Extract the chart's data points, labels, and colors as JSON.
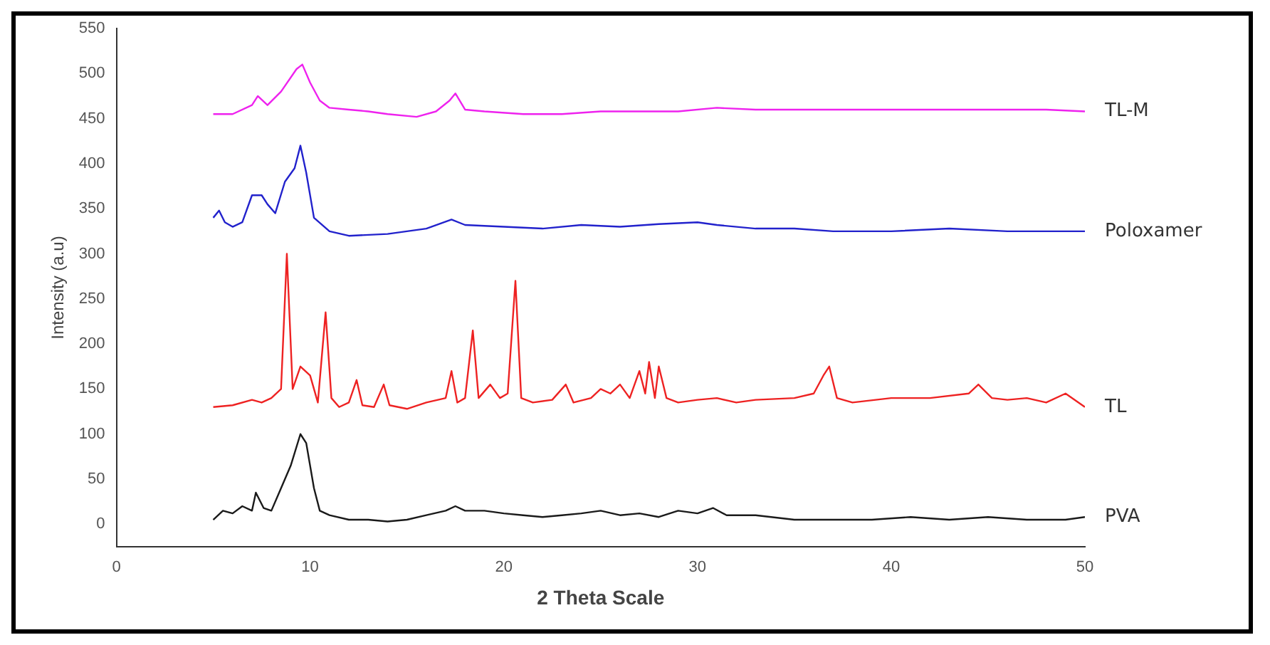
{
  "chart_data": {
    "type": "line",
    "xlabel": "2 Theta Scale",
    "ylabel": "Intensity (a.u)",
    "xlim": [
      0,
      50
    ],
    "xticks": [
      0,
      10,
      20,
      30,
      40,
      50
    ],
    "ylim": [
      -25,
      550
    ],
    "yticks": [
      0,
      50,
      100,
      150,
      200,
      250,
      300,
      350,
      400,
      450,
      500,
      550
    ],
    "grid": false,
    "series": [
      {
        "name": "PVA",
        "color": "#1a1a1a",
        "x": [
          5,
          5.5,
          6,
          6.5,
          7,
          7.2,
          7.6,
          8,
          8.5,
          9,
          9.5,
          9.8,
          10.2,
          10.5,
          11,
          12,
          13,
          14,
          15,
          16,
          17,
          17.5,
          18,
          19,
          20,
          21,
          22,
          23,
          24,
          25,
          26,
          27,
          28,
          29,
          30,
          30.8,
          31.5,
          33,
          35,
          37,
          39,
          41,
          43,
          45,
          47,
          49,
          50
        ],
        "values": [
          5,
          15,
          12,
          20,
          15,
          35,
          18,
          15,
          40,
          65,
          100,
          90,
          40,
          15,
          10,
          5,
          5,
          3,
          5,
          10,
          15,
          20,
          15,
          15,
          12,
          10,
          8,
          10,
          12,
          15,
          10,
          12,
          8,
          15,
          12,
          18,
          10,
          10,
          5,
          5,
          5,
          8,
          5,
          8,
          5,
          5,
          8
        ]
      },
      {
        "name": "TL",
        "color": "#ee2222",
        "x": [
          5,
          6,
          7,
          7.5,
          8,
          8.5,
          8.8,
          9.1,
          9.5,
          10,
          10.4,
          10.8,
          11.1,
          11.5,
          12,
          12.4,
          12.7,
          13.3,
          13.8,
          14.1,
          15,
          16,
          17,
          17.3,
          17.6,
          18,
          18.4,
          18.7,
          19.3,
          19.8,
          20.2,
          20.6,
          20.9,
          21.5,
          22.5,
          23.2,
          23.6,
          24.5,
          25,
          25.5,
          26,
          26.5,
          27,
          27.3,
          27.5,
          27.8,
          28,
          28.4,
          29,
          30,
          31,
          32,
          33,
          35,
          36,
          36.5,
          36.8,
          37.2,
          38,
          40,
          42,
          44,
          44.5,
          45.2,
          46,
          47,
          48,
          49,
          50
        ],
        "values": [
          130,
          132,
          138,
          135,
          140,
          150,
          300,
          150,
          175,
          165,
          135,
          235,
          140,
          130,
          135,
          160,
          132,
          130,
          155,
          132,
          128,
          135,
          140,
          170,
          135,
          140,
          215,
          140,
          155,
          140,
          145,
          270,
          140,
          135,
          138,
          155,
          135,
          140,
          150,
          145,
          155,
          140,
          170,
          145,
          180,
          140,
          175,
          140,
          135,
          138,
          140,
          135,
          138,
          140,
          145,
          165,
          175,
          140,
          135,
          140,
          140,
          145,
          155,
          140,
          138,
          140,
          135,
          145,
          130
        ]
      },
      {
        "name": "Poloxamer",
        "color": "#2222cc",
        "x": [
          5,
          5.3,
          5.6,
          6,
          6.5,
          7,
          7.5,
          7.8,
          8.2,
          8.7,
          9.2,
          9.5,
          9.8,
          10.2,
          11,
          12,
          14,
          16,
          17.3,
          18,
          20,
          22,
          24,
          26,
          28,
          30,
          31,
          33,
          35,
          37,
          40,
          43,
          46,
          48,
          50
        ],
        "values": [
          340,
          348,
          335,
          330,
          335,
          365,
          365,
          355,
          345,
          380,
          395,
          420,
          390,
          340,
          325,
          320,
          322,
          328,
          338,
          332,
          330,
          328,
          332,
          330,
          333,
          335,
          332,
          328,
          328,
          325,
          325,
          328,
          325,
          325,
          325
        ]
      },
      {
        "name": "TL-M",
        "color": "#ee22ee",
        "x": [
          5,
          6,
          7,
          7.3,
          7.8,
          8.5,
          9.3,
          9.6,
          10,
          10.5,
          11,
          12,
          13,
          14,
          15.5,
          16.5,
          17.2,
          17.5,
          18,
          19,
          21,
          23,
          25,
          27,
          29,
          31,
          33,
          35,
          37,
          40,
          43,
          46,
          48,
          50
        ],
        "values": [
          455,
          455,
          465,
          475,
          465,
          480,
          505,
          510,
          490,
          470,
          462,
          460,
          458,
          455,
          452,
          458,
          470,
          478,
          460,
          458,
          455,
          455,
          458,
          458,
          458,
          462,
          460,
          460,
          460,
          460,
          460,
          460,
          460,
          458
        ]
      }
    ]
  }
}
